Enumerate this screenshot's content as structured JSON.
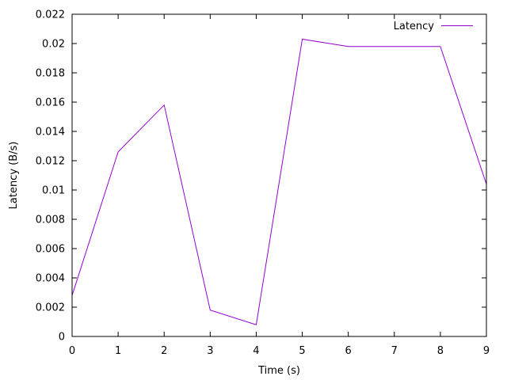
{
  "chart_data": {
    "type": "line",
    "title": "",
    "xlabel": "Time (s)",
    "ylabel": "Latency (B/s)",
    "xlim": [
      0,
      9
    ],
    "ylim": [
      0,
      0.022
    ],
    "x_ticks": [
      "0",
      "1",
      "2",
      "3",
      "4",
      "5",
      "6",
      "7",
      "8",
      "9"
    ],
    "y_ticks": [
      "0",
      "0.002",
      "0.004",
      "0.006",
      "0.008",
      "0.01",
      "0.012",
      "0.014",
      "0.016",
      "0.018",
      "0.02",
      "0.022"
    ],
    "x_tick_values": [
      0,
      1,
      2,
      3,
      4,
      5,
      6,
      7,
      8,
      9
    ],
    "y_tick_values": [
      0,
      0.002,
      0.004,
      0.006,
      0.008,
      0.01,
      0.012,
      0.014,
      0.016,
      0.018,
      0.02,
      0.022
    ],
    "grid": false,
    "legend_position": "top-right",
    "series": [
      {
        "name": "Latency",
        "color": "#9400d3",
        "x": [
          0,
          1,
          2,
          3,
          4,
          5,
          6,
          7,
          8,
          9
        ],
        "y": [
          0.0028,
          0.0126,
          0.0158,
          0.0018,
          0.0008,
          0.0203,
          0.0198,
          0.0198,
          0.0198,
          0.0104
        ]
      }
    ]
  }
}
